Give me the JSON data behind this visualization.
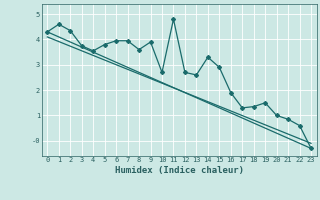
{
  "title": "",
  "xlabel": "Humidex (Indice chaleur)",
  "background_color": "#cce8e4",
  "grid_color": "#aad4ce",
  "line_color": "#1a6b6b",
  "xlim": [
    -0.5,
    23.5
  ],
  "ylim": [
    -0.6,
    5.4
  ],
  "xticks": [
    0,
    1,
    2,
    3,
    4,
    5,
    6,
    7,
    8,
    9,
    10,
    11,
    12,
    13,
    14,
    15,
    16,
    17,
    18,
    19,
    20,
    21,
    22,
    23
  ],
  "xtick_labels": [
    "0",
    "1",
    "2",
    "3",
    "4",
    "5",
    "6",
    "7",
    "8",
    "9",
    "10",
    "11",
    "12",
    "13",
    "14",
    "15",
    "16",
    "17",
    "18",
    "19",
    "20",
    "21",
    "22",
    "23"
  ],
  "yticks": [
    0,
    1,
    2,
    3,
    4,
    5
  ],
  "ytick_labels": [
    "-0",
    "1",
    "2",
    "3",
    "4",
    "5"
  ],
  "series1_x": [
    0,
    1,
    2,
    3,
    4,
    5,
    6,
    7,
    8,
    9,
    10,
    11,
    12,
    13,
    14,
    15,
    16,
    17,
    18,
    19,
    20,
    21,
    22,
    23
  ],
  "series1_y": [
    4.3,
    4.6,
    4.35,
    3.75,
    3.55,
    3.8,
    3.95,
    3.95,
    3.6,
    3.9,
    2.7,
    4.8,
    2.7,
    2.6,
    3.3,
    2.9,
    1.9,
    1.3,
    1.35,
    1.5,
    1.0,
    0.85,
    0.6,
    -0.3
  ],
  "series2_x": [
    0,
    23
  ],
  "series2_y": [
    4.3,
    -0.3
  ],
  "series3_x": [
    0,
    23
  ],
  "series3_y": [
    4.1,
    -0.1
  ],
  "markersize": 2.0,
  "linewidth": 0.9,
  "xlabel_fontsize": 6.5,
  "tick_fontsize": 5.0
}
